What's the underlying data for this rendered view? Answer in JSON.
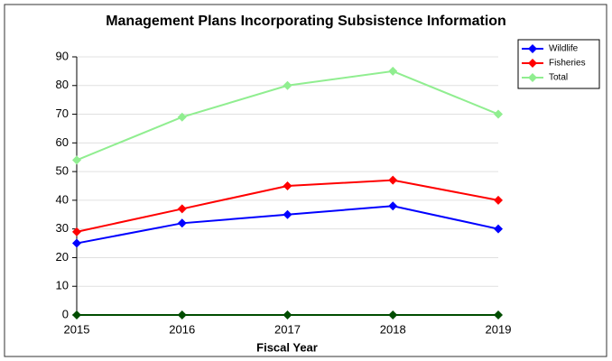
{
  "chart_data": {
    "type": "line",
    "title": "Management Plans Incorporating Subsistence Information",
    "x_label": "Fiscal Year",
    "x": [
      2015,
      2016,
      2017,
      2018,
      2019
    ],
    "xlim": [
      2015,
      2019
    ],
    "xticks": [
      2015,
      2016,
      2017,
      2018,
      2019
    ],
    "ylim": [
      0,
      90
    ],
    "yticks": [
      0,
      10,
      20,
      30,
      40,
      50,
      60,
      70,
      80,
      90
    ],
    "grid": true,
    "legend": "upper right",
    "series": [
      {
        "name": "Wildlife",
        "color": "#0000ff",
        "values": [
          25,
          32,
          35,
          38,
          30
        ]
      },
      {
        "name": "Fisheries",
        "color": "#ff0000",
        "values": [
          29,
          37,
          45,
          47,
          40
        ]
      },
      {
        "name": "Total",
        "color": "#90ee90",
        "values": [
          54,
          69,
          80,
          85,
          70
        ]
      },
      {
        "color": "#004d00",
        "values": [
          0,
          0,
          0,
          0,
          0
        ]
      }
    ]
  }
}
